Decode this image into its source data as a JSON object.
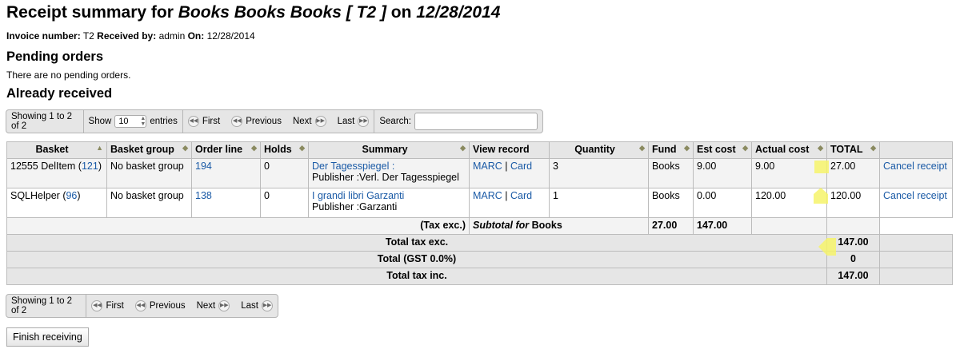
{
  "title": {
    "prefix": "Receipt summary for ",
    "vendor": "Books Books Books [ T2 ]",
    "on": " on ",
    "date": "12/28/2014"
  },
  "meta": {
    "invoice_label": "Invoice number:",
    "invoice": "T2",
    "received_label": "Received by:",
    "received": "admin",
    "on_label": "On:",
    "on": "12/28/2014"
  },
  "pending": {
    "heading": "Pending orders",
    "message": "There are no pending orders."
  },
  "received": {
    "heading": "Already received"
  },
  "pager": {
    "info": "Showing 1 to 2 of 2",
    "show": "Show",
    "entries_value": "10",
    "entries": "entries",
    "first": "First",
    "previous": "Previous",
    "next": "Next",
    "last": "Last",
    "search": "Search:",
    "search_value": ""
  },
  "columns": [
    "Basket",
    "Basket group",
    "Order line",
    "Holds",
    "Summary",
    "View record",
    "Quantity",
    "Fund",
    "Est cost",
    "Actual cost",
    "TOTAL"
  ],
  "rows": [
    {
      "basket": "12555 DelItem",
      "basket_id": "121",
      "group": "No basket group",
      "order_line": "194",
      "holds": "0",
      "title": "Der Tagesspiegel :",
      "publisher": "Publisher :Verl. Der Tagesspiegel",
      "marc": "MARC",
      "card": "Card",
      "quantity": "3",
      "fund": "Books",
      "est": "9.00",
      "actual": "9.00",
      "total": "27.00",
      "cancel": "Cancel receipt"
    },
    {
      "basket": "SQLHelper",
      "basket_id": "96",
      "group": "No basket group",
      "order_line": "138",
      "holds": "0",
      "title": "I grandi libri Garzanti",
      "publisher": "Publisher :Garzanti",
      "marc": "MARC",
      "card": "Card",
      "quantity": "1",
      "fund": "Books",
      "est": "0.00",
      "actual": "120.00",
      "total": "120.00",
      "cancel": "Cancel receipt"
    }
  ],
  "subtotal": {
    "tax_exc": "(Tax exc.)",
    "label_italic": "Subtotal for",
    "fund": "Books",
    "est": "27.00",
    "actual": "147.00"
  },
  "totals": [
    {
      "label": "Total tax exc.",
      "value": "147.00"
    },
    {
      "label": "Total (GST 0.0%)",
      "value": "0"
    },
    {
      "label": "Total tax inc.",
      "value": "147.00"
    }
  ],
  "finish_button": "Finish receiving",
  "highlight_color": "#f6f36a"
}
